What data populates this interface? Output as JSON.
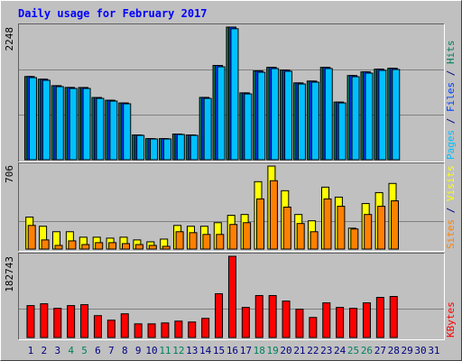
{
  "chart_data": [
    {
      "type": "bar",
      "title": "Daily usage for February 2017",
      "categories": [
        "1",
        "2",
        "3",
        "4",
        "5",
        "6",
        "7",
        "8",
        "9",
        "10",
        "11",
        "12",
        "13",
        "14",
        "15",
        "16",
        "17",
        "18",
        "19",
        "20",
        "21",
        "22",
        "23",
        "24",
        "25",
        "26",
        "27",
        "28",
        "29",
        "30",
        "31"
      ],
      "series": [
        {
          "name": "Hits",
          "color": "#00805c",
          "values": [
            1410,
            1365,
            1255,
            1225,
            1224,
            1055,
            1008,
            962,
            420,
            358,
            358,
            435,
            420,
            1056,
            1598,
            2248,
            1133,
            1505,
            1566,
            1520,
            1302,
            1333,
            1566,
            977,
            1427,
            1489,
            1535,
            1550,
            null,
            null,
            null
          ]
        },
        {
          "name": "Files",
          "color": "#0040ff",
          "values": [
            1410,
            1365,
            1255,
            1225,
            1224,
            1055,
            1008,
            962,
            420,
            358,
            358,
            435,
            420,
            1056,
            1598,
            2248,
            1133,
            1505,
            1566,
            1520,
            1302,
            1333,
            1566,
            977,
            1427,
            1489,
            1535,
            1550,
            null,
            null,
            null
          ]
        },
        {
          "name": "Pages",
          "color": "#00c0ff",
          "values": [
            1392,
            1346,
            1239,
            1208,
            1208,
            1040,
            994,
            948,
            413,
            352,
            352,
            428,
            413,
            1040,
            1575,
            2220,
            1116,
            1483,
            1545,
            1499,
            1284,
            1315,
            1545,
            963,
            1407,
            1468,
            1514,
            1529,
            null,
            null,
            null
          ]
        }
      ],
      "legend_separator": " / ",
      "ylim": [
        0,
        2248
      ],
      "yticks": [
        2248
      ]
    },
    {
      "type": "bar",
      "categories": [
        "1",
        "2",
        "3",
        "4",
        "5",
        "6",
        "7",
        "8",
        "9",
        "10",
        "11",
        "12",
        "13",
        "14",
        "15",
        "16",
        "17",
        "18",
        "19",
        "20",
        "21",
        "22",
        "23",
        "24",
        "25",
        "26",
        "27",
        "28",
        "29",
        "30",
        "31"
      ],
      "series": [
        {
          "name": "Visits",
          "color": "#ffff00",
          "values": [
            269,
            192,
            146,
            146,
            100,
            100,
            92,
            100,
            77,
            61,
            84,
            199,
            192,
            192,
            222,
            284,
            291,
            567,
            698,
            491,
            291,
            238,
            521,
            437,
            176,
            383,
            475,
            552,
            null,
            null,
            null
          ]
        },
        {
          "name": "Sites",
          "color": "#ff8000",
          "values": [
            199,
            77,
            31,
            69,
            38,
            54,
            54,
            46,
            38,
            31,
            23,
            146,
            138,
            123,
            123,
            207,
            222,
            422,
            575,
            353,
            215,
            146,
            422,
            360,
            169,
            291,
            360,
            406,
            null,
            null,
            null
          ]
        }
      ],
      "legend_separator": " / ",
      "ylim": [
        0,
        706
      ],
      "yticks": [
        706
      ]
    },
    {
      "type": "bar",
      "categories": [
        "1",
        "2",
        "3",
        "4",
        "5",
        "6",
        "7",
        "8",
        "9",
        "10",
        "11",
        "12",
        "13",
        "14",
        "15",
        "16",
        "17",
        "18",
        "19",
        "20",
        "21",
        "22",
        "23",
        "24",
        "25",
        "26",
        "27",
        "28",
        "29",
        "30",
        "31"
      ],
      "series": [
        {
          "name": "KBytes",
          "color": "#ff0000",
          "values": [
            71870,
            75976,
            65709,
            71870,
            73923,
            49282,
            39014,
            53388,
            30800,
            30800,
            32855,
            36961,
            34908,
            43121,
            98564,
            182743,
            67764,
            94457,
            94457,
            82137,
            63656,
            45176,
            78030,
            67764,
            65709,
            78030,
            90351,
            92404,
            null,
            null,
            null
          ]
        }
      ],
      "ylim": [
        0,
        182743
      ],
      "yticks": [
        182743
      ],
      "weekend_days": [
        "4",
        "5",
        "11",
        "12",
        "18",
        "19",
        "25",
        "26"
      ],
      "weekend_color": "#00805c",
      "label_color": "#000080"
    }
  ]
}
